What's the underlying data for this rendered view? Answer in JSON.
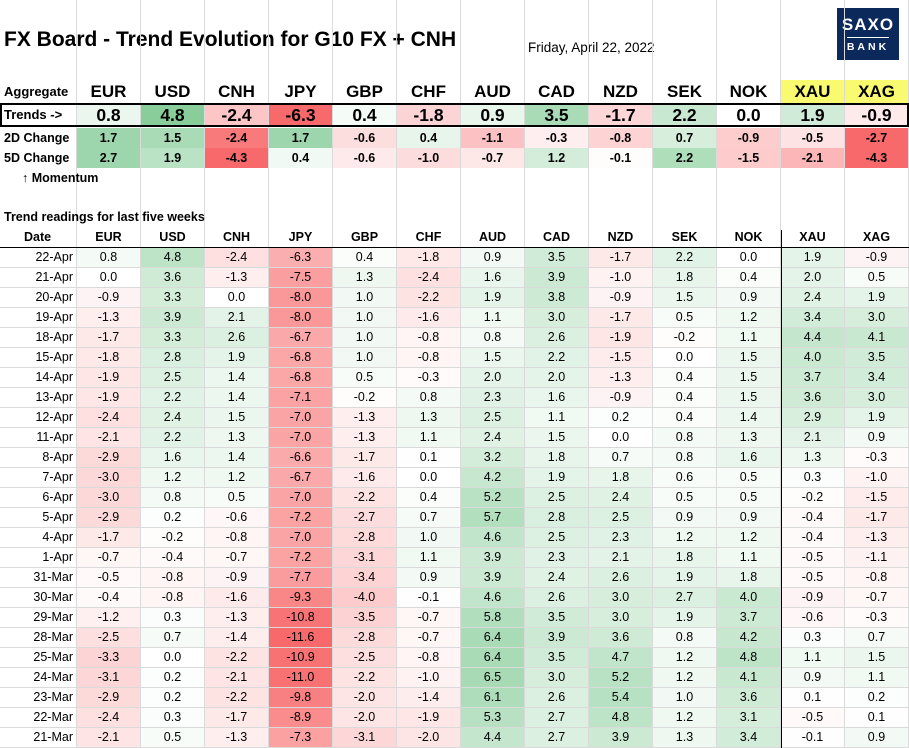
{
  "title": "FX Board - Trend Evolution for G10 FX + CNH",
  "date": "Friday, April 22, 2022",
  "logo": {
    "line1": "SAXO",
    "line2": "BANK"
  },
  "currencies": [
    "EUR",
    "USD",
    "CNH",
    "JPY",
    "GBP",
    "CHF",
    "AUD",
    "CAD",
    "NZD",
    "SEK",
    "NOK",
    "XAU",
    "XAG"
  ],
  "highlighted_currencies": [
    "XAU",
    "XAG"
  ],
  "labels": {
    "aggregate": "Aggregate",
    "trends": "Trends ->",
    "change_2d": "2D Change",
    "change_5d": "5D Change",
    "momentum": "↑ Momentum",
    "section": "Trend readings for last five weeks",
    "date_col": "Date"
  },
  "trends": [
    "0.8",
    "4.8",
    "-2.4",
    "-6.3",
    "0.4",
    "-1.8",
    "0.9",
    "3.5",
    "-1.7",
    "2.2",
    "0.0",
    "1.9",
    "-0.9"
  ],
  "change_2d": [
    "1.7",
    "1.5",
    "-2.4",
    "1.7",
    "-0.6",
    "0.4",
    "-1.1",
    "-0.3",
    "-0.8",
    "0.7",
    "-0.9",
    "-0.5",
    "-2.7"
  ],
  "change_5d": [
    "2.7",
    "1.9",
    "-4.3",
    "0.4",
    "-0.6",
    "-1.0",
    "-0.7",
    "1.2",
    "-0.1",
    "2.2",
    "-1.5",
    "-2.1",
    "-4.3"
  ],
  "history": [
    {
      "date": "22-Apr",
      "values": [
        "0.8",
        "4.8",
        "-2.4",
        "-6.3",
        "0.4",
        "-1.8",
        "0.9",
        "3.5",
        "-1.7",
        "2.2",
        "0.0",
        "1.9",
        "-0.9"
      ]
    },
    {
      "date": "21-Apr",
      "values": [
        "0.0",
        "3.6",
        "-1.3",
        "-7.5",
        "1.3",
        "-2.4",
        "1.6",
        "3.9",
        "-1.0",
        "1.8",
        "0.4",
        "2.0",
        "0.5"
      ]
    },
    {
      "date": "20-Apr",
      "values": [
        "-0.9",
        "3.3",
        "0.0",
        "-8.0",
        "1.0",
        "-2.2",
        "1.9",
        "3.8",
        "-0.9",
        "1.5",
        "0.9",
        "2.4",
        "1.9"
      ]
    },
    {
      "date": "19-Apr",
      "values": [
        "-1.3",
        "3.9",
        "2.1",
        "-8.0",
        "1.0",
        "-1.6",
        "1.1",
        "3.0",
        "-1.7",
        "0.5",
        "1.2",
        "3.4",
        "3.0"
      ]
    },
    {
      "date": "18-Apr",
      "values": [
        "-1.7",
        "3.3",
        "2.6",
        "-6.7",
        "1.0",
        "-0.8",
        "0.8",
        "2.6",
        "-1.9",
        "-0.2",
        "1.1",
        "4.4",
        "4.1"
      ]
    },
    {
      "date": "15-Apr",
      "values": [
        "-1.8",
        "2.8",
        "1.9",
        "-6.8",
        "1.0",
        "-0.8",
        "1.5",
        "2.2",
        "-1.5",
        "0.0",
        "1.5",
        "4.0",
        "3.5"
      ]
    },
    {
      "date": "14-Apr",
      "values": [
        "-1.9",
        "2.5",
        "1.4",
        "-6.8",
        "0.5",
        "-0.3",
        "2.0",
        "2.0",
        "-1.3",
        "0.4",
        "1.5",
        "3.7",
        "3.4"
      ]
    },
    {
      "date": "13-Apr",
      "values": [
        "-1.9",
        "2.2",
        "1.4",
        "-7.1",
        "-0.2",
        "0.8",
        "2.3",
        "1.6",
        "-0.9",
        "0.4",
        "1.5",
        "3.6",
        "3.0"
      ]
    },
    {
      "date": "12-Apr",
      "values": [
        "-2.4",
        "2.4",
        "1.5",
        "-7.0",
        "-1.3",
        "1.3",
        "2.5",
        "1.1",
        "0.2",
        "0.4",
        "1.4",
        "2.9",
        "1.9"
      ]
    },
    {
      "date": "11-Apr",
      "values": [
        "-2.1",
        "2.2",
        "1.3",
        "-7.0",
        "-1.3",
        "1.1",
        "2.4",
        "1.5",
        "0.0",
        "0.8",
        "1.3",
        "2.1",
        "0.9"
      ]
    },
    {
      "date": "8-Apr",
      "values": [
        "-2.9",
        "1.6",
        "1.4",
        "-6.6",
        "-1.7",
        "0.1",
        "3.2",
        "1.8",
        "0.7",
        "0.8",
        "1.6",
        "1.3",
        "-0.3"
      ]
    },
    {
      "date": "7-Apr",
      "values": [
        "-3.0",
        "1.2",
        "1.2",
        "-6.7",
        "-1.6",
        "0.0",
        "4.2",
        "1.9",
        "1.8",
        "0.6",
        "0.5",
        "0.3",
        "-1.0"
      ]
    },
    {
      "date": "6-Apr",
      "values": [
        "-3.0",
        "0.8",
        "0.5",
        "-7.0",
        "-2.2",
        "0.4",
        "5.2",
        "2.5",
        "2.4",
        "0.5",
        "0.5",
        "-0.2",
        "-1.5"
      ]
    },
    {
      "date": "5-Apr",
      "values": [
        "-2.9",
        "0.2",
        "-0.6",
        "-7.2",
        "-2.7",
        "0.7",
        "5.7",
        "2.8",
        "2.5",
        "0.9",
        "0.9",
        "-0.4",
        "-1.7"
      ]
    },
    {
      "date": "4-Apr",
      "values": [
        "-1.7",
        "-0.2",
        "-0.8",
        "-7.0",
        "-2.8",
        "1.0",
        "4.6",
        "2.5",
        "2.3",
        "1.2",
        "1.2",
        "-0.4",
        "-1.3"
      ]
    },
    {
      "date": "1-Apr",
      "values": [
        "-0.7",
        "-0.4",
        "-0.7",
        "-7.2",
        "-3.1",
        "1.1",
        "3.9",
        "2.3",
        "2.1",
        "1.8",
        "1.1",
        "-0.5",
        "-1.1"
      ]
    },
    {
      "date": "31-Mar",
      "values": [
        "-0.5",
        "-0.8",
        "-0.9",
        "-7.7",
        "-3.4",
        "0.9",
        "3.9",
        "2.4",
        "2.6",
        "1.9",
        "1.8",
        "-0.5",
        "-0.8"
      ]
    },
    {
      "date": "30-Mar",
      "values": [
        "-0.4",
        "-0.8",
        "-1.6",
        "-9.3",
        "-4.0",
        "-0.1",
        "4.6",
        "2.6",
        "3.0",
        "2.7",
        "4.0",
        "-0.9",
        "-0.7"
      ]
    },
    {
      "date": "29-Mar",
      "values": [
        "-1.2",
        "0.3",
        "-1.3",
        "-10.8",
        "-3.5",
        "-0.7",
        "5.8",
        "3.5",
        "3.0",
        "1.9",
        "3.7",
        "-0.6",
        "-0.3"
      ]
    },
    {
      "date": "28-Mar",
      "values": [
        "-2.5",
        "0.7",
        "-1.4",
        "-11.6",
        "-2.8",
        "-0.7",
        "6.4",
        "3.9",
        "3.6",
        "0.8",
        "4.2",
        "0.3",
        "0.7"
      ]
    },
    {
      "date": "25-Mar",
      "values": [
        "-3.3",
        "0.0",
        "-2.2",
        "-10.9",
        "-2.5",
        "-0.8",
        "6.4",
        "3.5",
        "4.7",
        "1.2",
        "4.8",
        "1.1",
        "1.5"
      ]
    },
    {
      "date": "24-Mar",
      "values": [
        "-3.1",
        "0.2",
        "-2.1",
        "-11.0",
        "-2.2",
        "-1.0",
        "6.5",
        "3.0",
        "5.2",
        "1.2",
        "4.1",
        "0.9",
        "1.1"
      ]
    },
    {
      "date": "23-Mar",
      "values": [
        "-2.9",
        "0.2",
        "-2.2",
        "-9.8",
        "-2.0",
        "-1.4",
        "6.1",
        "2.6",
        "5.4",
        "1.0",
        "3.6",
        "0.1",
        "0.2"
      ]
    },
    {
      "date": "22-Mar",
      "values": [
        "-2.4",
        "0.3",
        "-1.7",
        "-8.9",
        "-2.0",
        "-1.9",
        "5.3",
        "2.7",
        "4.8",
        "1.2",
        "3.1",
        "-0.5",
        "0.1"
      ]
    },
    {
      "date": "21-Mar",
      "values": [
        "-2.1",
        "0.5",
        "-1.3",
        "-7.3",
        "-3.1",
        "-2.0",
        "4.4",
        "2.7",
        "3.9",
        "1.3",
        "3.4",
        "-0.1",
        "0.9"
      ]
    }
  ],
  "colors": {
    "positive": "#63be7b",
    "negative": "#f8696b",
    "neutral": "#ffffff",
    "highlight": "#fafa70",
    "logo": "#0b2a5b"
  }
}
